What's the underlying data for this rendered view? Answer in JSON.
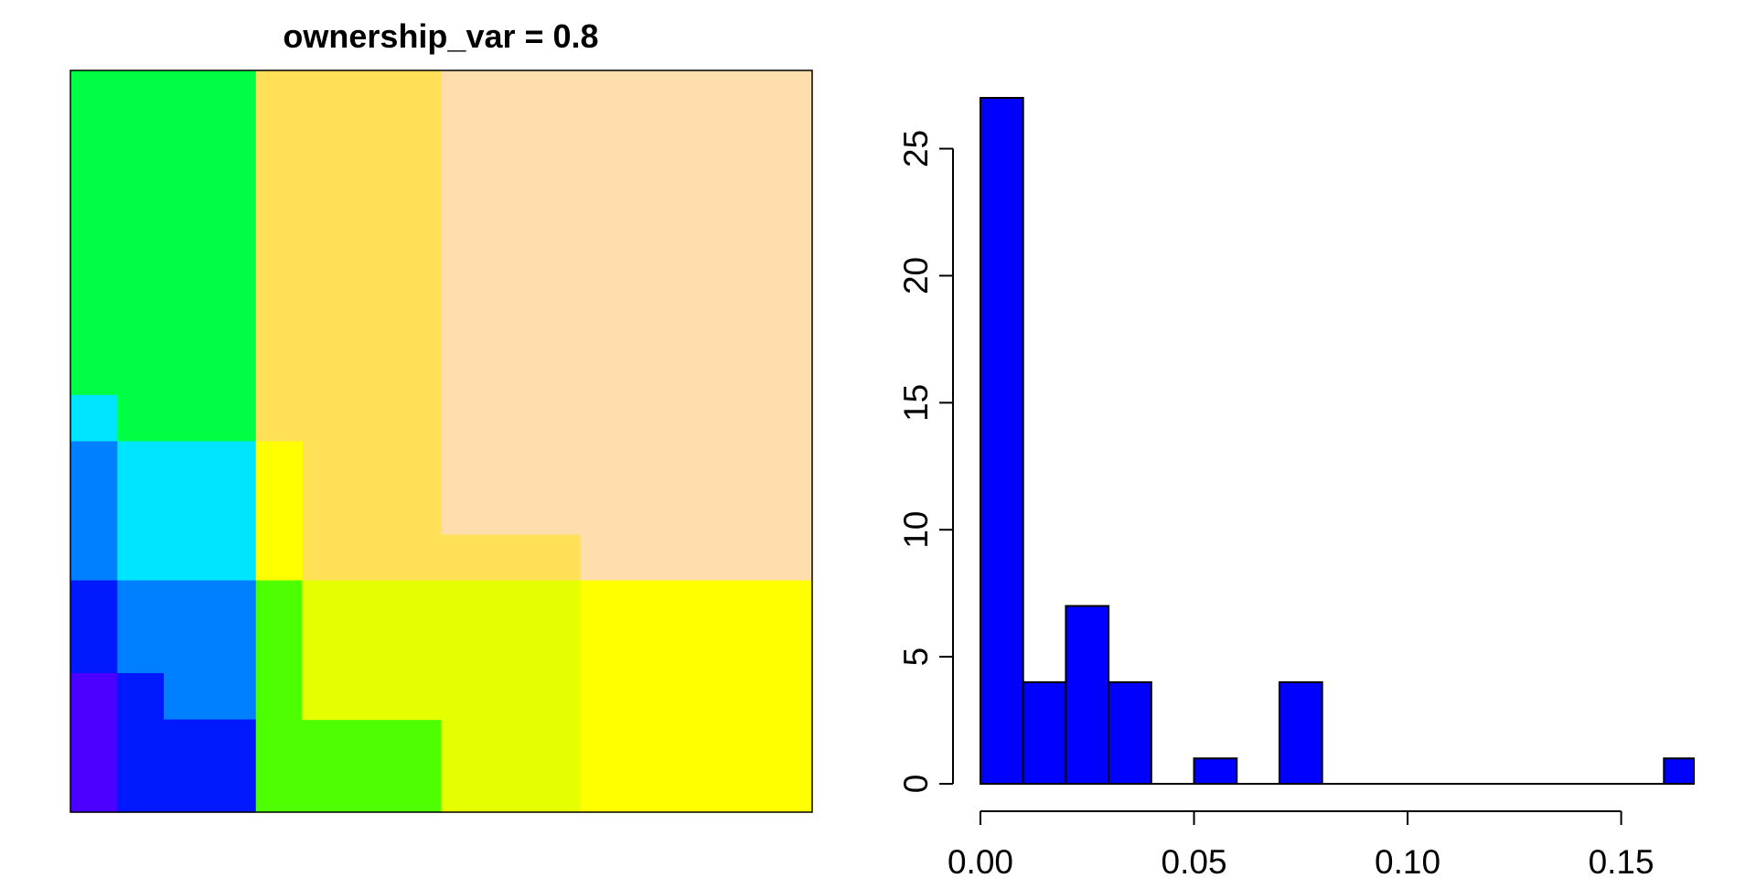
{
  "chart_data": [
    {
      "type": "heatmap",
      "title": "ownership_var = 0.8",
      "grid_size": [
        16,
        16
      ],
      "axes": false,
      "regions": [
        {
          "name": "r1",
          "color": "#00FF44",
          "cols": [
            0,
            4
          ],
          "rows": [
            0,
            7
          ]
        },
        {
          "name": "r2",
          "color": "#00FF44",
          "cols": [
            1,
            4
          ],
          "rows": [
            7,
            8
          ]
        },
        {
          "name": "r3",
          "color": "#00E5FF",
          "cols": [
            0,
            1
          ],
          "rows": [
            7,
            8
          ]
        },
        {
          "name": "r4",
          "color": "#00E5FF",
          "cols": [
            1,
            4
          ],
          "rows": [
            8,
            11
          ]
        },
        {
          "name": "r5",
          "color": "#0080FF",
          "cols": [
            0,
            1
          ],
          "rows": [
            8,
            11
          ]
        },
        {
          "name": "r6",
          "color": "#0080FF",
          "cols": [
            1,
            4
          ],
          "rows": [
            11,
            14
          ]
        },
        {
          "name": "r7",
          "color": "#0019FF",
          "cols": [
            0,
            1
          ],
          "rows": [
            11,
            13
          ]
        },
        {
          "name": "r8",
          "color": "#0019FF",
          "cols": [
            1,
            2
          ],
          "rows": [
            13,
            16
          ]
        },
        {
          "name": "r9",
          "color": "#0019FF",
          "cols": [
            2,
            4
          ],
          "rows": [
            14,
            16
          ]
        },
        {
          "name": "r10",
          "color": "#4C00FF",
          "cols": [
            0,
            1
          ],
          "rows": [
            13,
            16
          ]
        },
        {
          "name": "r11",
          "color": "#FFE057",
          "cols": [
            4,
            8
          ],
          "rows": [
            0,
            8
          ]
        },
        {
          "name": "r12",
          "color": "#FFE057",
          "cols": [
            5,
            8
          ],
          "rows": [
            8,
            10
          ]
        },
        {
          "name": "r13",
          "color": "#FFE057",
          "cols": [
            5,
            11
          ],
          "rows": [
            10,
            11
          ]
        },
        {
          "name": "r14",
          "color": "#FFFF00",
          "cols": [
            4,
            5
          ],
          "rows": [
            8,
            11
          ]
        },
        {
          "name": "r15",
          "color": "#FFDEAD",
          "cols": [
            8,
            16
          ],
          "rows": [
            0,
            10
          ]
        },
        {
          "name": "r16",
          "color": "#FFDEAD",
          "cols": [
            11,
            16
          ],
          "rows": [
            10,
            11
          ]
        },
        {
          "name": "r17",
          "color": "#4DFF00",
          "cols": [
            4,
            5
          ],
          "rows": [
            11,
            14
          ]
        },
        {
          "name": "r18",
          "color": "#4DFF00",
          "cols": [
            4,
            8
          ],
          "rows": [
            14,
            16
          ]
        },
        {
          "name": "r19",
          "color": "#E6FF00",
          "cols": [
            5,
            11
          ],
          "rows": [
            11,
            14
          ]
        },
        {
          "name": "r20",
          "color": "#E6FF00",
          "cols": [
            8,
            11
          ],
          "rows": [
            14,
            16
          ]
        },
        {
          "name": "r21",
          "color": "#FFFF00",
          "cols": [
            11,
            16
          ],
          "rows": [
            11,
            16
          ]
        }
      ]
    },
    {
      "type": "bar",
      "title": "",
      "xlabel": "",
      "ylabel": "",
      "bar_color": "#0000FF",
      "bin_width": 0.01,
      "bins_start": [
        0.0,
        0.01,
        0.02,
        0.03,
        0.05,
        0.07,
        0.16
      ],
      "values": [
        27,
        4,
        7,
        4,
        1,
        4,
        1
      ],
      "baseline_range": [
        0.0,
        0.167
      ],
      "xlim": [
        0.0,
        0.167
      ],
      "ylim": [
        0,
        27
      ],
      "xticks": [
        0.0,
        0.05,
        0.1,
        0.15
      ],
      "xtick_labels": [
        "0.00",
        "0.05",
        "0.10",
        "0.15"
      ],
      "yticks": [
        0,
        5,
        10,
        15,
        20,
        25
      ],
      "ytick_labels": [
        "0",
        "5",
        "10",
        "15",
        "20",
        "25"
      ],
      "y_tick_labels_rotated": true
    }
  ]
}
